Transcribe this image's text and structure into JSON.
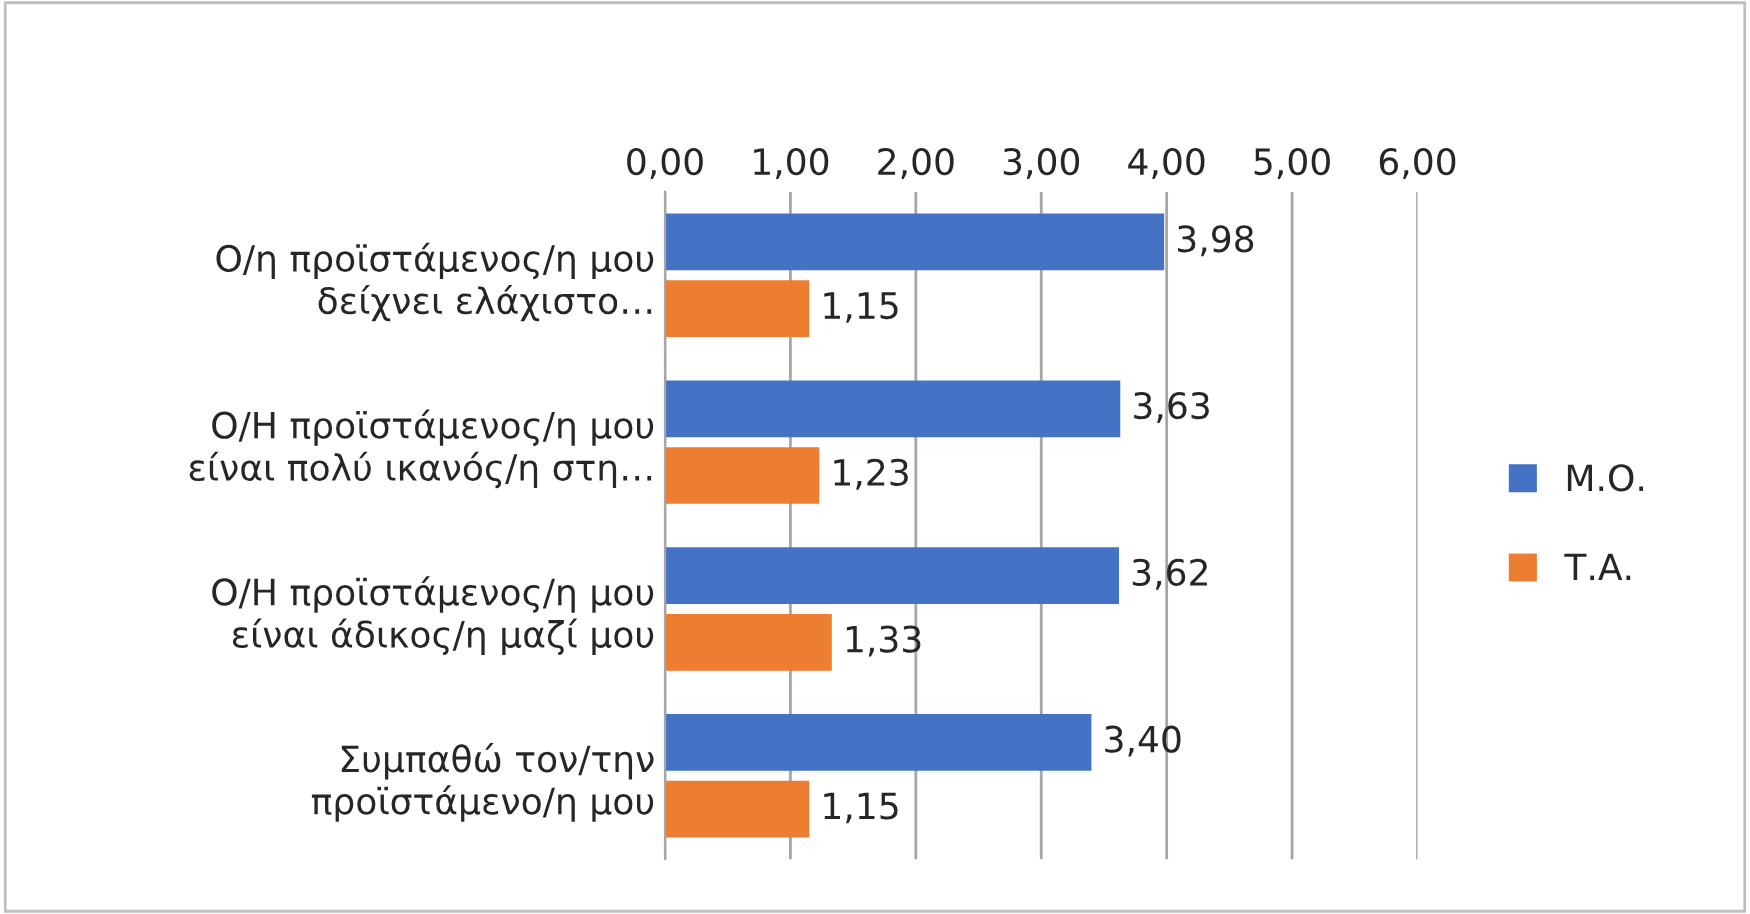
{
  "chart_data": {
    "type": "bar",
    "orientation": "horizontal",
    "categories": [
      "Ο/η προϊστάμενος/η μου\nδείχνει ελάχιστο…",
      "Ο/Η προϊστάμενος/η μου\nείναι πολύ ικανός/η στη…",
      "Ο/Η προϊστάμενος/η μου\nείναι άδικος/η μαζί μου",
      "Συμπαθώ τον/την\nπροϊστάμενο/η μου"
    ],
    "series": [
      {
        "name": "Μ.Ο.",
        "color": "#4472c4",
        "values": [
          3.98,
          3.63,
          3.62,
          3.4
        ],
        "value_labels": [
          "3,98",
          "3,63",
          "3,62",
          "3,40"
        ]
      },
      {
        "name": "Τ.Α.",
        "color": "#ed7d31",
        "values": [
          1.15,
          1.23,
          1.33,
          1.15
        ],
        "value_labels": [
          "1,15",
          "1,23",
          "1,33",
          "1,15"
        ]
      }
    ],
    "xlim": [
      0,
      6
    ],
    "xticks": [
      {
        "value": 0,
        "label": "0,00"
      },
      {
        "value": 1,
        "label": "1,00"
      },
      {
        "value": 2,
        "label": "2,00"
      },
      {
        "value": 3,
        "label": "3,00"
      },
      {
        "value": 4,
        "label": "4,00"
      },
      {
        "value": 5,
        "label": "5,00"
      },
      {
        "value": 6,
        "label": "6,00"
      }
    ],
    "grid": "x",
    "legend": "right"
  }
}
